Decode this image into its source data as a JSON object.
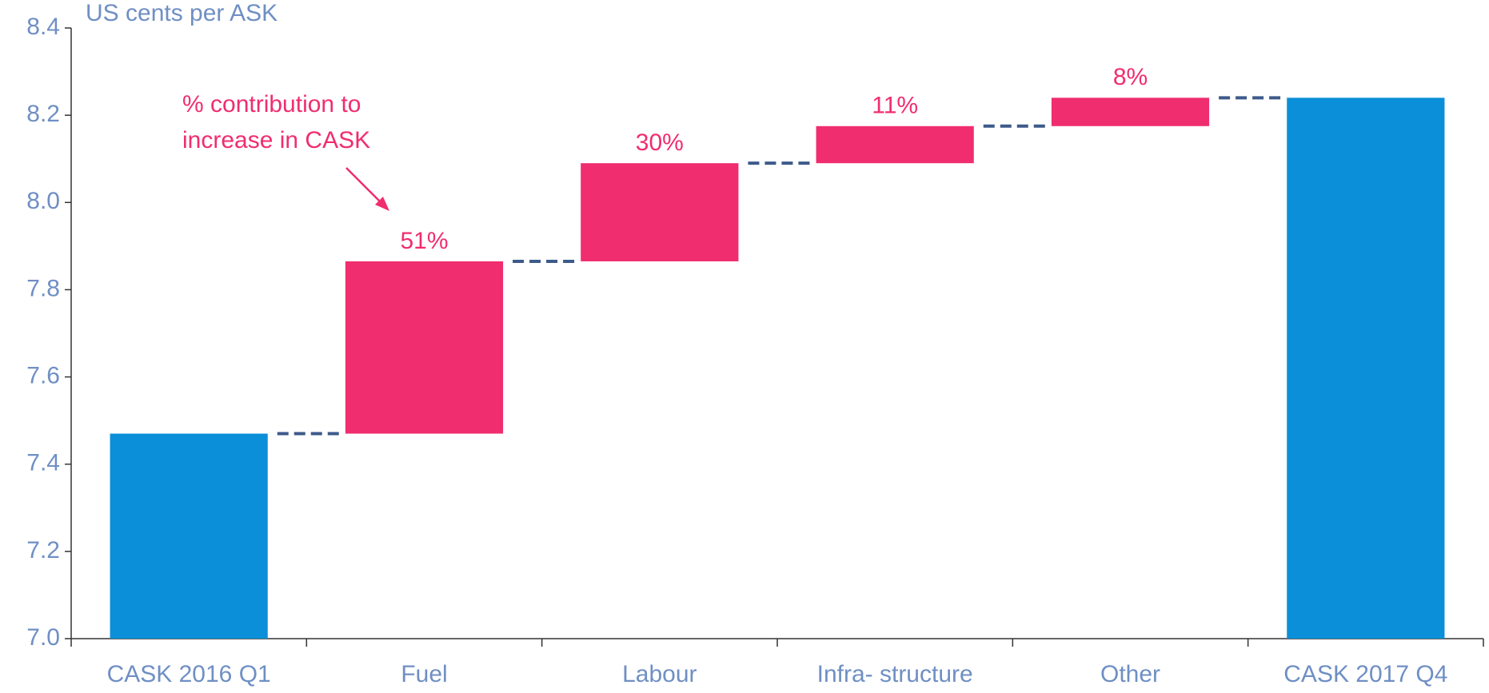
{
  "chart_data": {
    "type": "waterfall",
    "y_axis_label": "US cents per ASK",
    "categories": [
      "CASK 2016 Q1",
      "Fuel",
      "Labour",
      "Infra- structure",
      "Other",
      "CASK 2017 Q4"
    ],
    "measures": [
      "absolute",
      "relative",
      "relative",
      "relative",
      "relative",
      "total"
    ],
    "values": [
      7.47,
      0.395,
      0.225,
      0.085,
      0.065,
      8.24
    ],
    "contribution_labels": [
      null,
      "51%",
      "30%",
      "11%",
      "8%",
      null
    ],
    "colors": {
      "total": "#0a8fd8",
      "increase": "#f02d6f"
    },
    "annotation": [
      "% contribution to",
      "increase in CASK"
    ],
    "ylim": [
      7.0,
      8.4
    ],
    "yticks": [
      {
        "value": 7.0,
        "label": "7.0"
      },
      7.2,
      7.4,
      7.6,
      7.8,
      {
        "value": 8.0,
        "label": "8.0"
      },
      8.2,
      8.4
    ],
    "grid": false
  }
}
